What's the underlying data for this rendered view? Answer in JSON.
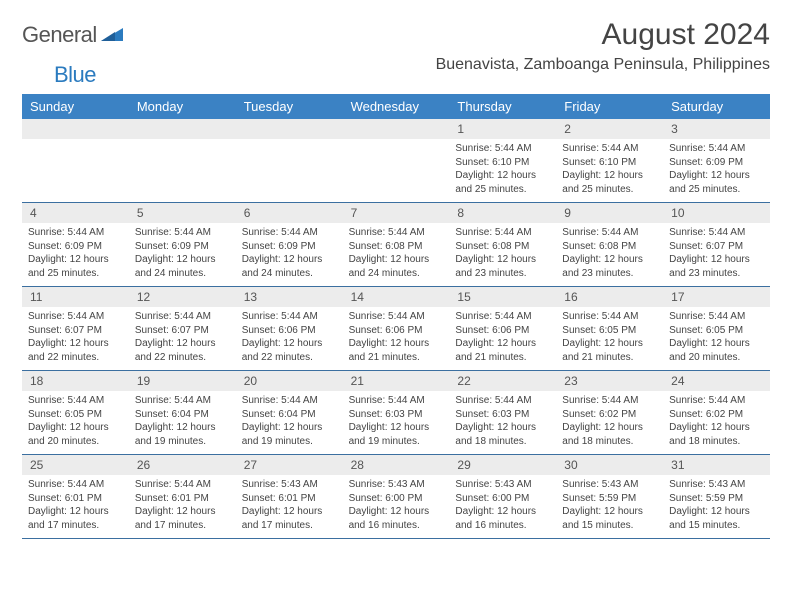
{
  "branding": {
    "text_general": "General",
    "text_blue": "Blue",
    "general_color": "#555555",
    "blue_color": "#2b7bbf",
    "triangle_color": "#2b7bbf"
  },
  "header": {
    "month_title": "August 2024",
    "location": "Buenavista, Zamboanga Peninsula, Philippines"
  },
  "styling": {
    "header_bg": "#3b82c4",
    "header_text": "#ffffff",
    "daynum_bg": "#ececec",
    "body_text": "#444444",
    "rule_color": "#3b6fa0",
    "title_fontsize": 30,
    "location_fontsize": 16,
    "dayheader_fontsize": 13,
    "daynum_fontsize": 12,
    "cell_fontsize": 10
  },
  "day_names": [
    "Sunday",
    "Monday",
    "Tuesday",
    "Wednesday",
    "Thursday",
    "Friday",
    "Saturday"
  ],
  "weeks": [
    [
      {
        "n": "",
        "sr": "",
        "ss": "",
        "dl": ""
      },
      {
        "n": "",
        "sr": "",
        "ss": "",
        "dl": ""
      },
      {
        "n": "",
        "sr": "",
        "ss": "",
        "dl": ""
      },
      {
        "n": "",
        "sr": "",
        "ss": "",
        "dl": ""
      },
      {
        "n": "1",
        "sr": "Sunrise: 5:44 AM",
        "ss": "Sunset: 6:10 PM",
        "dl": "Daylight: 12 hours and 25 minutes."
      },
      {
        "n": "2",
        "sr": "Sunrise: 5:44 AM",
        "ss": "Sunset: 6:10 PM",
        "dl": "Daylight: 12 hours and 25 minutes."
      },
      {
        "n": "3",
        "sr": "Sunrise: 5:44 AM",
        "ss": "Sunset: 6:09 PM",
        "dl": "Daylight: 12 hours and 25 minutes."
      }
    ],
    [
      {
        "n": "4",
        "sr": "Sunrise: 5:44 AM",
        "ss": "Sunset: 6:09 PM",
        "dl": "Daylight: 12 hours and 25 minutes."
      },
      {
        "n": "5",
        "sr": "Sunrise: 5:44 AM",
        "ss": "Sunset: 6:09 PM",
        "dl": "Daylight: 12 hours and 24 minutes."
      },
      {
        "n": "6",
        "sr": "Sunrise: 5:44 AM",
        "ss": "Sunset: 6:09 PM",
        "dl": "Daylight: 12 hours and 24 minutes."
      },
      {
        "n": "7",
        "sr": "Sunrise: 5:44 AM",
        "ss": "Sunset: 6:08 PM",
        "dl": "Daylight: 12 hours and 24 minutes."
      },
      {
        "n": "8",
        "sr": "Sunrise: 5:44 AM",
        "ss": "Sunset: 6:08 PM",
        "dl": "Daylight: 12 hours and 23 minutes."
      },
      {
        "n": "9",
        "sr": "Sunrise: 5:44 AM",
        "ss": "Sunset: 6:08 PM",
        "dl": "Daylight: 12 hours and 23 minutes."
      },
      {
        "n": "10",
        "sr": "Sunrise: 5:44 AM",
        "ss": "Sunset: 6:07 PM",
        "dl": "Daylight: 12 hours and 23 minutes."
      }
    ],
    [
      {
        "n": "11",
        "sr": "Sunrise: 5:44 AM",
        "ss": "Sunset: 6:07 PM",
        "dl": "Daylight: 12 hours and 22 minutes."
      },
      {
        "n": "12",
        "sr": "Sunrise: 5:44 AM",
        "ss": "Sunset: 6:07 PM",
        "dl": "Daylight: 12 hours and 22 minutes."
      },
      {
        "n": "13",
        "sr": "Sunrise: 5:44 AM",
        "ss": "Sunset: 6:06 PM",
        "dl": "Daylight: 12 hours and 22 minutes."
      },
      {
        "n": "14",
        "sr": "Sunrise: 5:44 AM",
        "ss": "Sunset: 6:06 PM",
        "dl": "Daylight: 12 hours and 21 minutes."
      },
      {
        "n": "15",
        "sr": "Sunrise: 5:44 AM",
        "ss": "Sunset: 6:06 PM",
        "dl": "Daylight: 12 hours and 21 minutes."
      },
      {
        "n": "16",
        "sr": "Sunrise: 5:44 AM",
        "ss": "Sunset: 6:05 PM",
        "dl": "Daylight: 12 hours and 21 minutes."
      },
      {
        "n": "17",
        "sr": "Sunrise: 5:44 AM",
        "ss": "Sunset: 6:05 PM",
        "dl": "Daylight: 12 hours and 20 minutes."
      }
    ],
    [
      {
        "n": "18",
        "sr": "Sunrise: 5:44 AM",
        "ss": "Sunset: 6:05 PM",
        "dl": "Daylight: 12 hours and 20 minutes."
      },
      {
        "n": "19",
        "sr": "Sunrise: 5:44 AM",
        "ss": "Sunset: 6:04 PM",
        "dl": "Daylight: 12 hours and 19 minutes."
      },
      {
        "n": "20",
        "sr": "Sunrise: 5:44 AM",
        "ss": "Sunset: 6:04 PM",
        "dl": "Daylight: 12 hours and 19 minutes."
      },
      {
        "n": "21",
        "sr": "Sunrise: 5:44 AM",
        "ss": "Sunset: 6:03 PM",
        "dl": "Daylight: 12 hours and 19 minutes."
      },
      {
        "n": "22",
        "sr": "Sunrise: 5:44 AM",
        "ss": "Sunset: 6:03 PM",
        "dl": "Daylight: 12 hours and 18 minutes."
      },
      {
        "n": "23",
        "sr": "Sunrise: 5:44 AM",
        "ss": "Sunset: 6:02 PM",
        "dl": "Daylight: 12 hours and 18 minutes."
      },
      {
        "n": "24",
        "sr": "Sunrise: 5:44 AM",
        "ss": "Sunset: 6:02 PM",
        "dl": "Daylight: 12 hours and 18 minutes."
      }
    ],
    [
      {
        "n": "25",
        "sr": "Sunrise: 5:44 AM",
        "ss": "Sunset: 6:01 PM",
        "dl": "Daylight: 12 hours and 17 minutes."
      },
      {
        "n": "26",
        "sr": "Sunrise: 5:44 AM",
        "ss": "Sunset: 6:01 PM",
        "dl": "Daylight: 12 hours and 17 minutes."
      },
      {
        "n": "27",
        "sr": "Sunrise: 5:43 AM",
        "ss": "Sunset: 6:01 PM",
        "dl": "Daylight: 12 hours and 17 minutes."
      },
      {
        "n": "28",
        "sr": "Sunrise: 5:43 AM",
        "ss": "Sunset: 6:00 PM",
        "dl": "Daylight: 12 hours and 16 minutes."
      },
      {
        "n": "29",
        "sr": "Sunrise: 5:43 AM",
        "ss": "Sunset: 6:00 PM",
        "dl": "Daylight: 12 hours and 16 minutes."
      },
      {
        "n": "30",
        "sr": "Sunrise: 5:43 AM",
        "ss": "Sunset: 5:59 PM",
        "dl": "Daylight: 12 hours and 15 minutes."
      },
      {
        "n": "31",
        "sr": "Sunrise: 5:43 AM",
        "ss": "Sunset: 5:59 PM",
        "dl": "Daylight: 12 hours and 15 minutes."
      }
    ]
  ]
}
